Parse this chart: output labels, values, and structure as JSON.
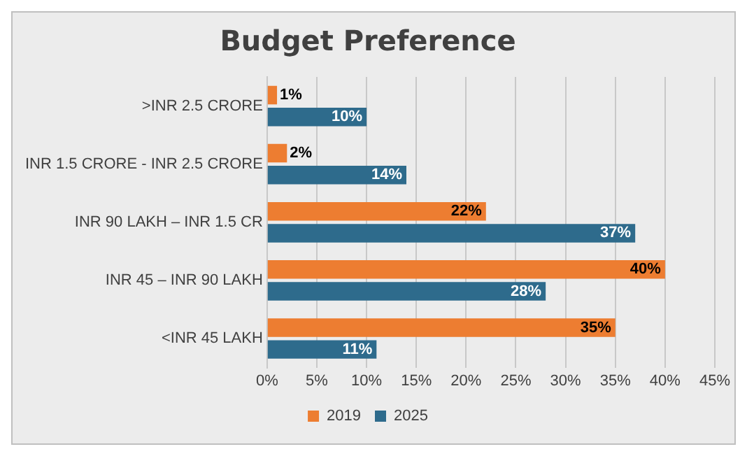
{
  "chart_data": {
    "type": "bar",
    "orientation": "horizontal",
    "title": "Budget Preference",
    "categories": [
      ">INR 2.5 CRORE",
      "INR 1.5 CRORE - INR 2.5 CRORE",
      "INR 90 LAKH – INR 1.5 CR",
      "INR 45 – INR 90 LAKH",
      "<INR 45 LAKH"
    ],
    "series": [
      {
        "name": "2019",
        "color": "#ed7d31",
        "values": [
          1,
          2,
          22,
          40,
          35
        ],
        "value_labels": [
          "1%",
          "2%",
          "22%",
          "40%",
          "35%"
        ]
      },
      {
        "name": "2025",
        "color": "#2e6b8c",
        "values": [
          10,
          14,
          37,
          28,
          11
        ],
        "value_labels": [
          "10%",
          "14%",
          "37%",
          "28%",
          "11%"
        ]
      }
    ],
    "xlim": [
      0,
      45
    ],
    "xticks": [
      {
        "value": 0,
        "label": "0%"
      },
      {
        "value": 5,
        "label": "5%"
      },
      {
        "value": 10,
        "label": "10%"
      },
      {
        "value": 15,
        "label": "15%"
      },
      {
        "value": 20,
        "label": "20%"
      },
      {
        "value": 25,
        "label": "25%"
      },
      {
        "value": 30,
        "label": "30%"
      },
      {
        "value": 35,
        "label": "35%"
      },
      {
        "value": 40,
        "label": "40%"
      },
      {
        "value": 45,
        "label": "45%"
      }
    ],
    "grid": "x",
    "legend": "bottom"
  }
}
